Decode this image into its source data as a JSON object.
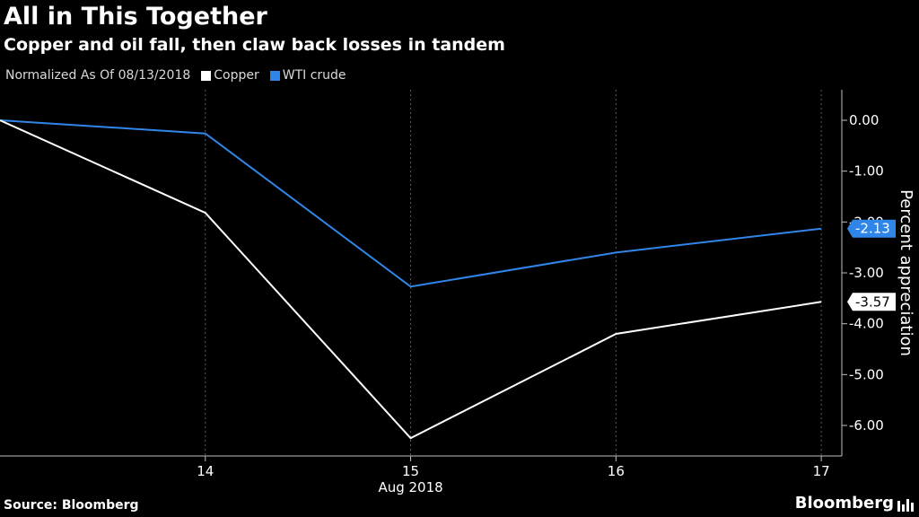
{
  "header": {
    "title": "All in This Together",
    "subtitle": "Copper and oil fall, then claw back losses in tandem"
  },
  "legend": {
    "note": "Normalized As Of 08/13/2018",
    "items": [
      {
        "label": "Copper",
        "color": "#ffffff"
      },
      {
        "label": "WTI crude",
        "color": "#2f86e8"
      }
    ]
  },
  "footer": {
    "source": "Source: Bloomberg",
    "brand": "Bloomberg"
  },
  "chart_data": {
    "type": "line",
    "x": [
      13,
      14,
      15,
      16,
      17
    ],
    "x_tick_labels": [
      "14",
      "15",
      "16",
      "17"
    ],
    "x_tick_values": [
      14,
      15,
      16,
      17
    ],
    "x_sublabel": "Aug 2018",
    "ylabel": "Percent appreciation",
    "ylim": [
      -6.6,
      0.6
    ],
    "y_ticks": [
      0,
      -1,
      -2,
      -3,
      -4,
      -5,
      -6
    ],
    "y_tick_labels": [
      "0.00",
      "-1.00",
      "-2.00",
      "-3.00",
      "-4.00",
      "-5.00",
      "-6.00"
    ],
    "y_axis_side": "right",
    "grid": "vertical dashed",
    "series": [
      {
        "name": "Copper",
        "color": "#ffffff",
        "values": [
          0,
          -1.82,
          -6.25,
          -4.2,
          -3.57
        ],
        "end_label": "-3.57"
      },
      {
        "name": "WTI crude",
        "color": "#2f86e8",
        "values": [
          0,
          -0.26,
          -3.27,
          -2.6,
          -2.13
        ],
        "end_label": "-2.13"
      }
    ]
  }
}
